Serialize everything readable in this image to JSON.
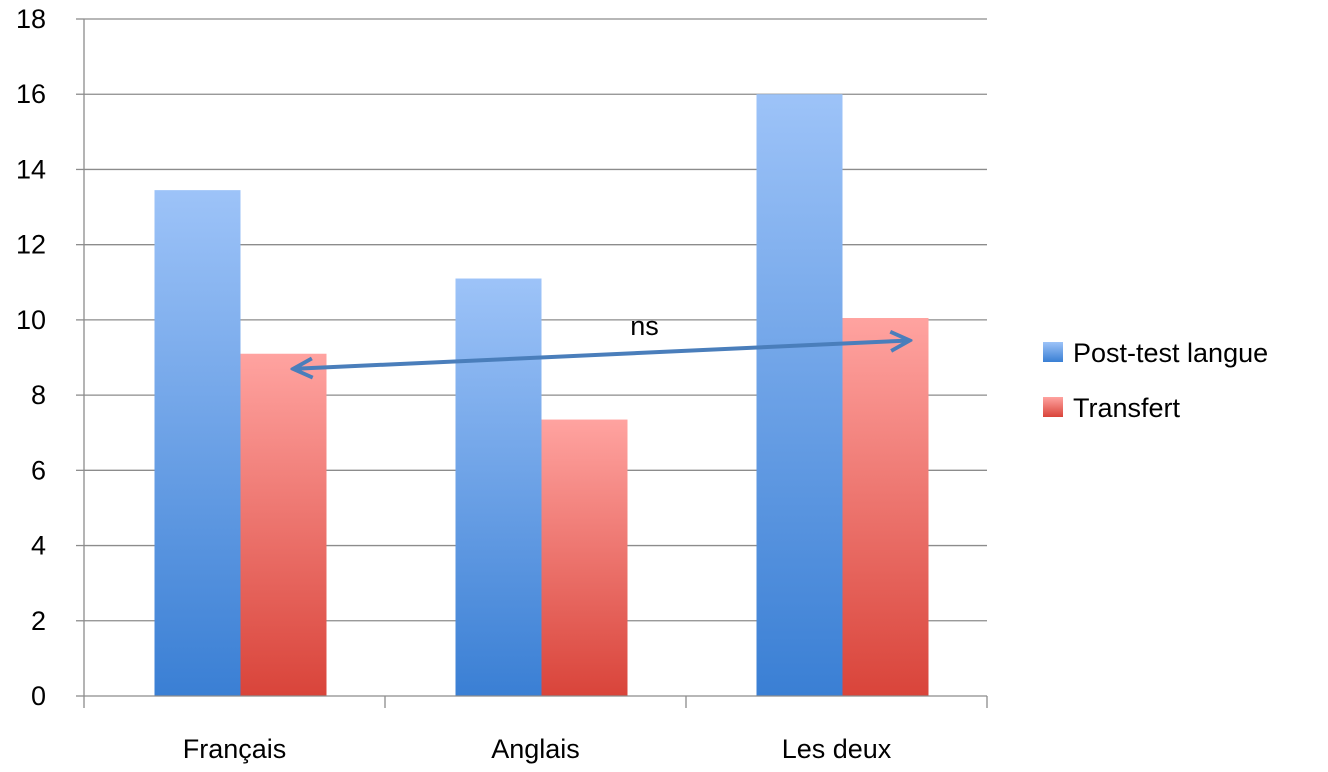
{
  "chart_data": {
    "type": "bar",
    "categories": [
      "Français",
      "Anglais",
      "Les deux"
    ],
    "series": [
      {
        "name": "Post-test langue",
        "values": [
          13.45,
          11.1,
          16.0
        ],
        "color_top": "#9dc3f8",
        "color_bottom": "#3a7fd4"
      },
      {
        "name": "Transfert",
        "values": [
          9.1,
          7.35,
          10.05
        ],
        "color_top": "#ffa3a0",
        "color_bottom": "#d9443a"
      }
    ],
    "y_ticks": [
      "0",
      "2",
      "4",
      "6",
      "8",
      "10",
      "12",
      "14",
      "16",
      "18"
    ],
    "ylim": [
      0,
      18
    ],
    "grid": true,
    "legend_position": "right",
    "annotation": {
      "text": "ns",
      "from": {
        "category": "Français",
        "series": "Transfert",
        "value": 8.7
      },
      "to": {
        "category": "Les deux",
        "series": "Transfert",
        "value": 9.45
      },
      "color": "#4a7ebb"
    }
  }
}
